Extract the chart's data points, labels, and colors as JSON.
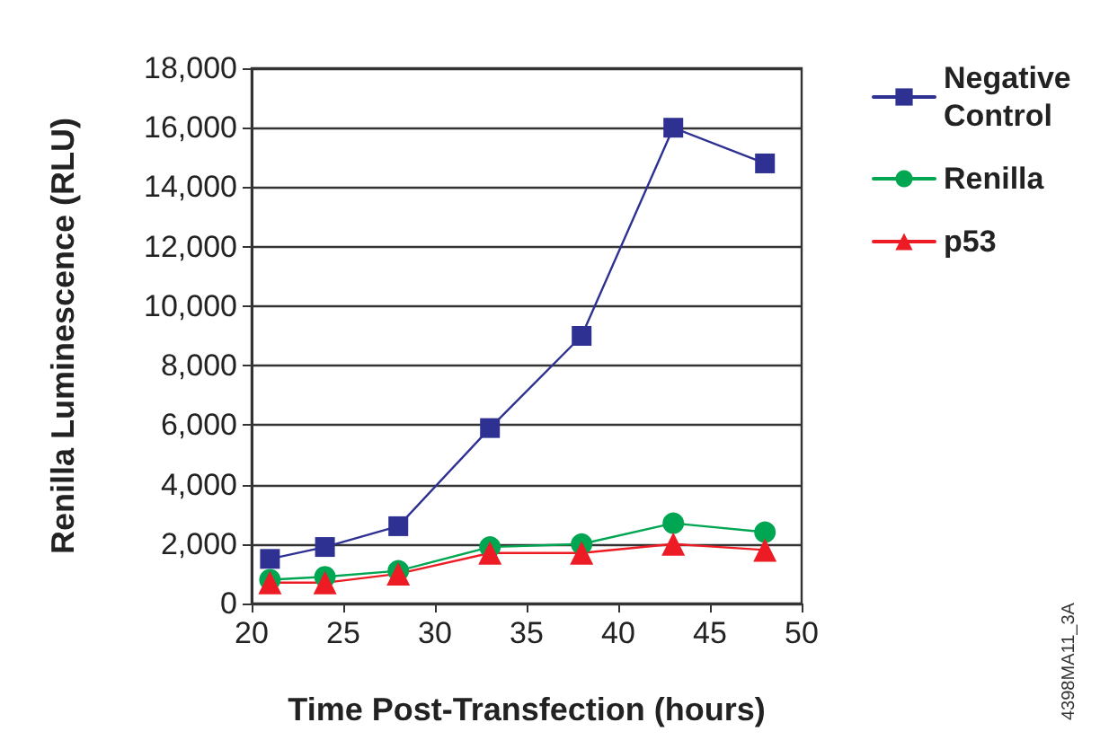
{
  "chart_data": {
    "type": "line",
    "xlabel": "Time Post-Transfection (hours)",
    "ylabel": "Renilla Luminescence (RLU)",
    "x": [
      21,
      24,
      28,
      33,
      38,
      43,
      48
    ],
    "series": [
      {
        "name": "Negative Control",
        "color": "#2e3192",
        "marker": "square",
        "values": [
          1500,
          1900,
          2600,
          5900,
          9000,
          16000,
          14800
        ]
      },
      {
        "name": "Renilla",
        "color": "#00a651",
        "marker": "circle",
        "values": [
          800,
          900,
          1100,
          1900,
          2000,
          2700,
          2400
        ]
      },
      {
        "name": "p53",
        "color": "#ed1c24",
        "marker": "triangle",
        "values": [
          700,
          700,
          1000,
          1700,
          1700,
          2000,
          1800
        ]
      }
    ],
    "xlim": [
      20,
      50
    ],
    "xticks": [
      20,
      25,
      30,
      35,
      40,
      45,
      50
    ],
    "ylim": [
      0,
      18000
    ],
    "yticks": [
      0,
      {
        "value": 2000,
        "label": "2,000"
      },
      {
        "value": 4000,
        "label": "4,000"
      },
      {
        "value": 6000,
        "label": "6,000"
      },
      {
        "value": 8000,
        "label": "8,000"
      },
      {
        "value": 10000,
        "label": "10,000"
      },
      {
        "value": 12000,
        "label": "12,000"
      },
      {
        "value": 14000,
        "label": "14,000"
      },
      {
        "value": 16000,
        "label": "16,000"
      },
      {
        "value": 18000,
        "label": "18,000"
      }
    ],
    "grid": "y",
    "legend": "right",
    "annotations": [
      "4398MA11_3A"
    ]
  }
}
